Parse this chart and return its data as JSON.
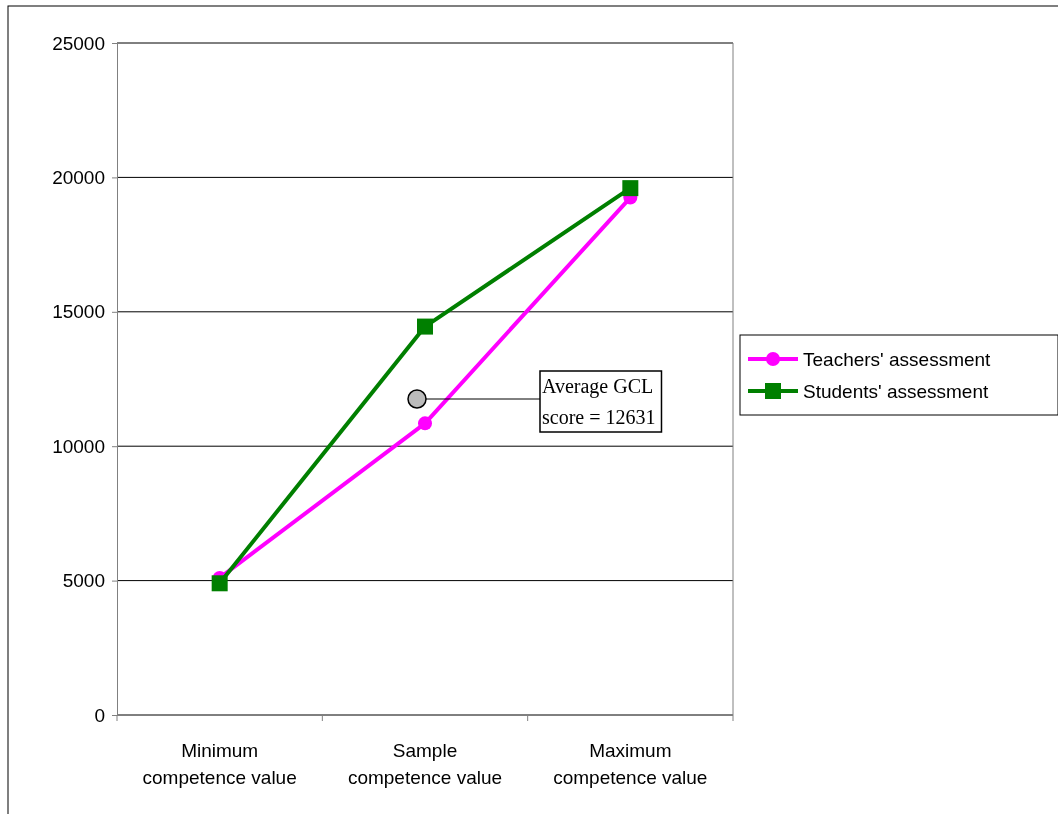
{
  "chart_data": {
    "type": "line",
    "categories": [
      "Minimum competence value",
      "Sample competence value",
      "Maximum competence value"
    ],
    "series": [
      {
        "name": "Teachers' assessment",
        "color": "#ff00ff",
        "marker": "circle",
        "values": [
          5100,
          10850,
          19250
        ]
      },
      {
        "name": "Students' assessment",
        "color": "#007f00",
        "marker": "square",
        "values": [
          4900,
          14450,
          19600
        ]
      }
    ],
    "ylim": [
      0,
      25000
    ],
    "yticks": [
      0,
      5000,
      10000,
      15000,
      20000,
      25000
    ],
    "grid": "y",
    "legend": "right",
    "line_style": "solid",
    "annotations": [
      "Average GCL\nscore = 12631"
    ]
  }
}
